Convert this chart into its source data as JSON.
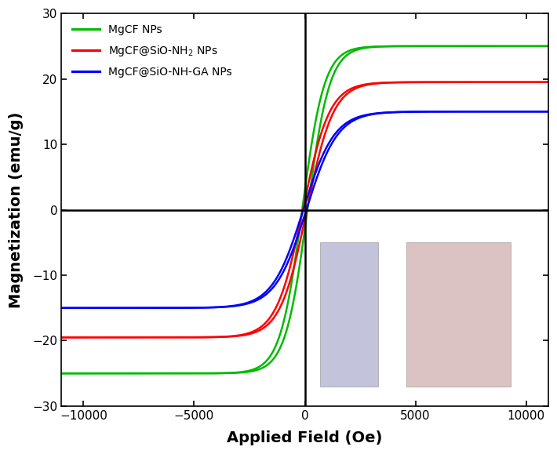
{
  "title": "",
  "xlabel": "Applied Field (Oe)",
  "ylabel": "Magnetization (emu/g)",
  "xlim": [
    -11000,
    11000
  ],
  "ylim": [
    -30,
    30
  ],
  "xticks": [
    -10000,
    -5000,
    0,
    5000,
    10000
  ],
  "yticks": [
    -30,
    -20,
    -10,
    0,
    10,
    20,
    30
  ],
  "curves": [
    {
      "name": "MgCF",
      "color": "#00bb00",
      "Ms": 25.0,
      "Hc": 120,
      "k_steep": 1000.0,
      "Mr": 2.5
    },
    {
      "name": "MgCF_SiO_NH2",
      "color": "#ff0000",
      "Ms": 19.5,
      "Hc": 90,
      "k_steep": 1200.0,
      "Mr": 1.8
    },
    {
      "name": "MgCF_SiO_NH_GA",
      "color": "#0000ff",
      "Ms": 15.0,
      "Hc": 70,
      "k_steep": 1400.0,
      "Mr": 1.2
    }
  ],
  "legend_labels": [
    "MgCF NPs",
    "MgCF@SiO-NH$_2$ NPs",
    "MgCF@SiO-NH-GA NPs"
  ],
  "background_color": "#ffffff",
  "linewidth": 1.8,
  "figsize": [
    7.1,
    5.79
  ],
  "dpi": 100
}
